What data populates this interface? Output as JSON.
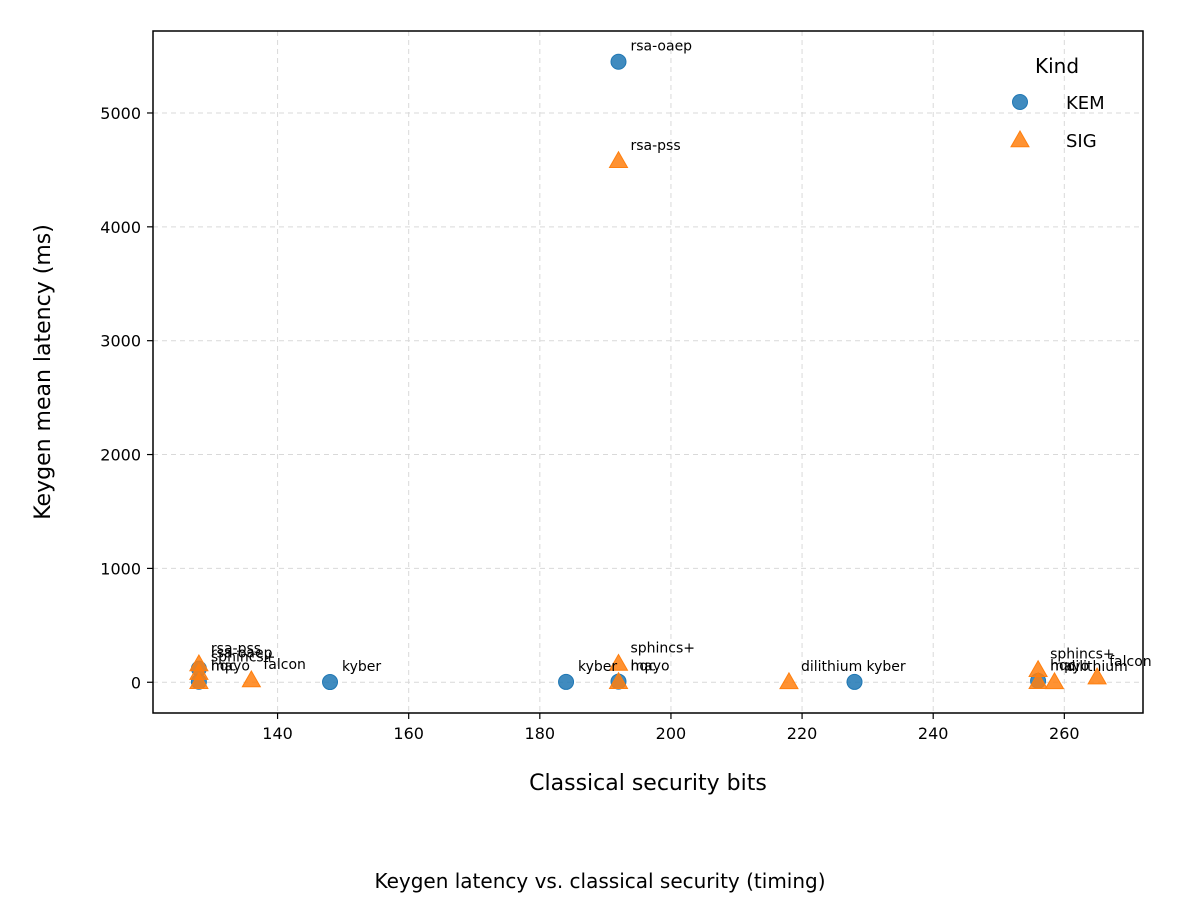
{
  "caption": "Keygen latency vs. classical security (timing)",
  "chart_data": {
    "type": "scatter",
    "xlabel": "Classical security bits",
    "ylabel": "Keygen mean latency (ms)",
    "xlim": [
      121,
      272
    ],
    "ylim": [
      -270,
      5720
    ],
    "xticks": [
      140,
      160,
      180,
      200,
      220,
      240,
      260
    ],
    "yticks": [
      0,
      1000,
      2000,
      3000,
      4000,
      5000
    ],
    "grid": true,
    "legend": {
      "title": "Kind",
      "placement": "top-right",
      "entries": [
        {
          "name": "KEM",
          "marker": "circle",
          "color": "#1f77b4"
        },
        {
          "name": "SIG",
          "marker": "triangle",
          "color": "#ff7f0e"
        }
      ]
    },
    "series": [
      {
        "name": "KEM",
        "marker": "circle",
        "color": "#1f77b4",
        "points": [
          {
            "x": 128,
            "y": 120,
            "label": "rsa-oaep"
          },
          {
            "x": 128,
            "y": 5,
            "label": "hqc"
          },
          {
            "x": 148,
            "y": 2,
            "label": "kyber"
          },
          {
            "x": 184,
            "y": 3,
            "label": "kyber"
          },
          {
            "x": 192,
            "y": 5450,
            "label": "rsa-oaep"
          },
          {
            "x": 192,
            "y": 6,
            "label": "hqc"
          },
          {
            "x": 228,
            "y": 3,
            "label": "kyber"
          },
          {
            "x": 256,
            "y": 12,
            "label": "hqc"
          }
        ]
      },
      {
        "name": "SIG",
        "marker": "triangle",
        "color": "#ff7f0e",
        "points": [
          {
            "x": 128,
            "y": 160,
            "label": "rsa-pss"
          },
          {
            "x": 128,
            "y": 85,
            "label": "sphincs+"
          },
          {
            "x": 128,
            "y": 5,
            "label": "mayo"
          },
          {
            "x": 136,
            "y": 20,
            "label": "falcon"
          },
          {
            "x": 192,
            "y": 4580,
            "label": "rsa-pss"
          },
          {
            "x": 192,
            "y": 165,
            "label": "sphincs+"
          },
          {
            "x": 192,
            "y": 5,
            "label": "mayo"
          },
          {
            "x": 218,
            "y": 3,
            "label": "dilithium"
          },
          {
            "x": 256,
            "y": 110,
            "label": "sphincs+"
          },
          {
            "x": 256,
            "y": 5,
            "label": "mayo"
          },
          {
            "x": 258.5,
            "y": 3,
            "label": "dilithium"
          },
          {
            "x": 265,
            "y": 45,
            "label": "falcon"
          }
        ]
      }
    ]
  }
}
